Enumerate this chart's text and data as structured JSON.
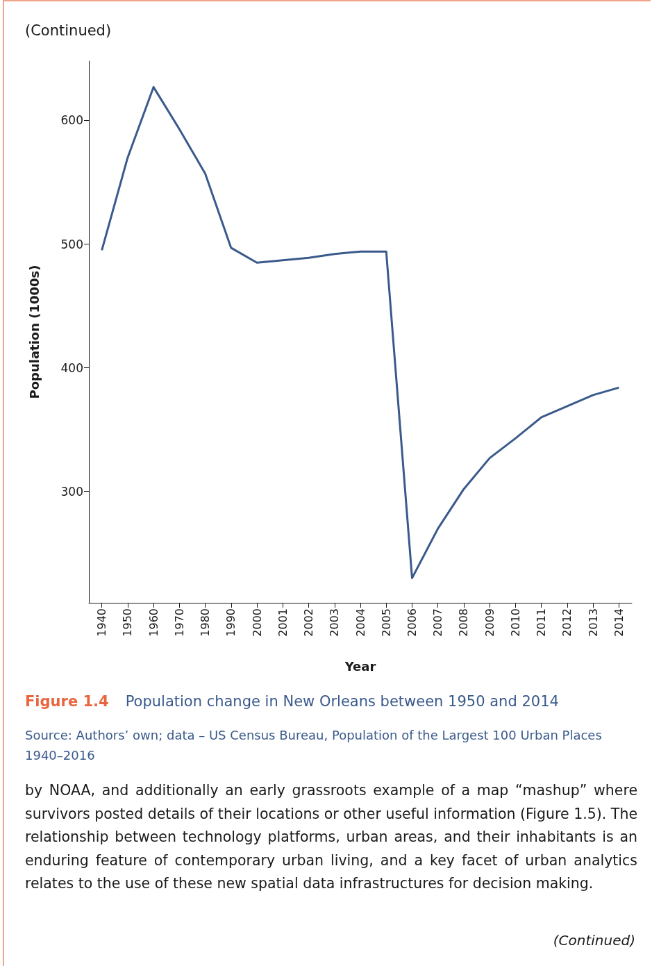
{
  "chart_data": {
    "type": "line",
    "title": "Figure 1.4",
    "subtitle": "Population change in New Orleans between 1950 and 2014",
    "xlabel": "Year",
    "ylabel": "Population (1000s)",
    "categories": [
      "1940",
      "1950",
      "1960",
      "1970",
      "1980",
      "1990",
      "2000",
      "2001",
      "2002",
      "2003",
      "2004",
      "2005",
      "2006",
      "2007",
      "2008",
      "2009",
      "2010",
      "2011",
      "2012",
      "2013",
      "2014"
    ],
    "series": [
      {
        "color": "#3a5a8c",
        "values": [
          495,
          570,
          627,
          593,
          557,
          497,
          485,
          487,
          489,
          492,
          494,
          494,
          230,
          270,
          302,
          327,
          343,
          360,
          369,
          378,
          384
        ]
      }
    ],
    "ylim": [
      210,
      648
    ],
    "yticks": [
      300,
      400,
      500,
      600
    ],
    "grid": false,
    "marker": "none",
    "line_style": "solid",
    "annotations": [
      "(Continued)",
      "Source: Authors’ own; data – US Census Bureau, Population of the Largest 100 Urban Places 1940–2016",
      "by NOAA, and additionally an early grassroots example of a map “mashup” where survivors posted details of their locations or other useful information (Figure 1.5). The relationship between technology platforms, urban areas, and their inhabitants is an enduring feature of contemporary urban living, and a key facet of urban analytics relates to the use of these new spatial data infrastructures for decision making.",
      "(Continued)"
    ]
  }
}
